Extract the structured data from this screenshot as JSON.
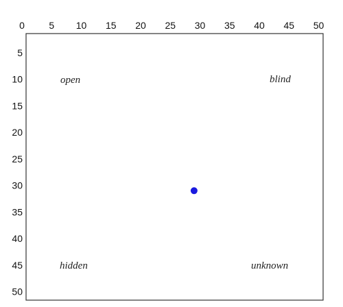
{
  "chart_data": {
    "type": "scatter",
    "x_ticks": [
      "0",
      "5",
      "10",
      "15",
      "20",
      "25",
      "30",
      "35",
      "40",
      "45",
      "50"
    ],
    "y_ticks": [
      "5",
      "10",
      "15",
      "20",
      "25",
      "30",
      "35",
      "40",
      "45",
      "50"
    ],
    "xlim": [
      0,
      50
    ],
    "ylim": [
      0,
      50
    ],
    "y_axis_inverted": true,
    "grid": false,
    "quadrant_labels": {
      "top_left": "open",
      "top_right": "blind",
      "bottom_left": "hidden",
      "bottom_right": "unknown"
    },
    "points": [
      {
        "x": 29,
        "y": 31,
        "color": "#1a1adf"
      }
    ]
  }
}
